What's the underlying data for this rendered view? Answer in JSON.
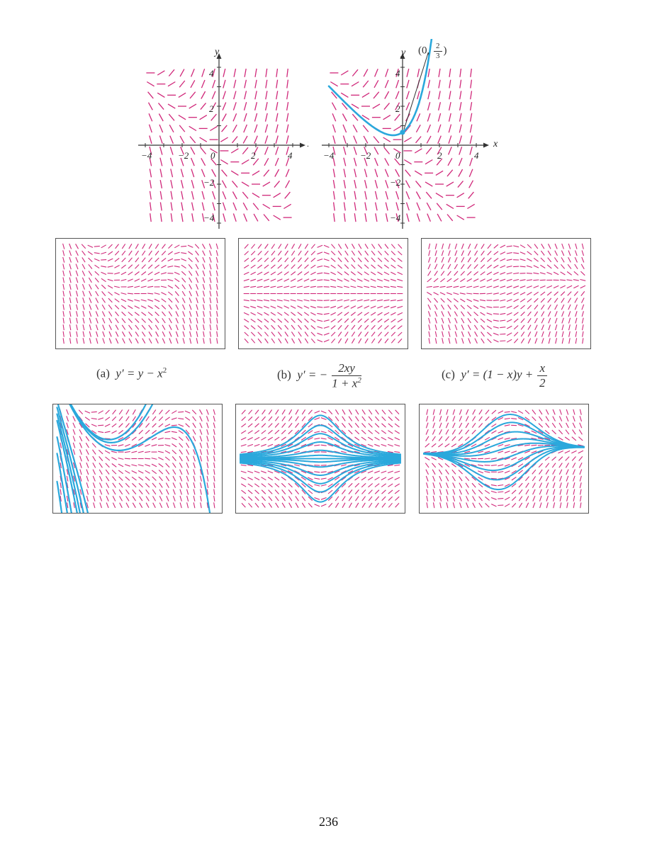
{
  "colors": {
    "slope_field": "#d0287a",
    "solution_curve": "#2aa8dc",
    "axes": "#333333"
  },
  "top_left_plot": {
    "x_axis_label": "x",
    "y_axis_label": "y",
    "x_ticks": [
      "−4",
      "−2",
      "0",
      "2",
      "4"
    ],
    "y_ticks": [
      "4",
      "2",
      "−2",
      "−4"
    ]
  },
  "top_right_plot": {
    "x_axis_label": "x",
    "y_axis_label": "y",
    "x_ticks": [
      "−4",
      "−2",
      "0",
      "2",
      "4"
    ],
    "y_ticks": [
      "4",
      "2",
      "−2",
      "−4"
    ],
    "point_label": {
      "prefix": "0,",
      "numerator": "2",
      "denominator": "3"
    }
  },
  "captions": {
    "a": {
      "tag": "(a)",
      "lhs": "y′ = y − x",
      "exp": "2"
    },
    "b": {
      "tag": "(b)",
      "lhs": "y′ = −",
      "numerator": "2xy",
      "denominator": "1 + x",
      "den_exp": "2"
    },
    "c": {
      "tag": "(c)",
      "lhs": "y′ = (1 − x)y +",
      "numerator": "x",
      "denominator": "2"
    }
  },
  "page_number": "236"
}
